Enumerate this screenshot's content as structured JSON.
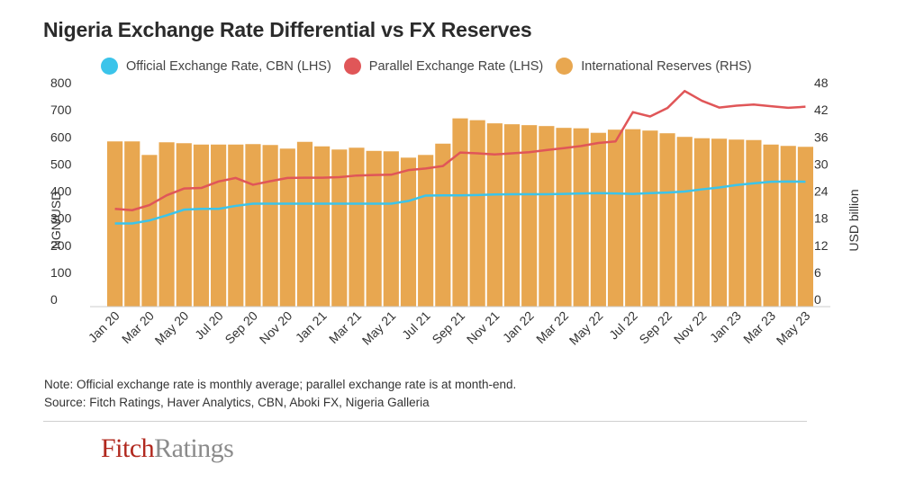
{
  "chart_data": {
    "type": "bar",
    "title": "Nigeria Exchange Rate Differential vs FX Reserves",
    "ylabel_left": "NGN/USD",
    "ylabel_right": "USD billion",
    "ylim_left": [
      0,
      800
    ],
    "ylim_right": [
      0,
      48
    ],
    "yticks_left": [
      "0",
      "100",
      "200",
      "300",
      "400",
      "500",
      "600",
      "700",
      "800"
    ],
    "yticks_right": [
      "0",
      "6",
      "12",
      "18",
      "24",
      "30",
      "36",
      "42",
      "48"
    ],
    "categories": [
      "Jan 20",
      "Feb 20",
      "Mar 20",
      "Apr 20",
      "May 20",
      "Jun 20",
      "Jul 20",
      "Aug 20",
      "Sep 20",
      "Oct 20",
      "Nov 20",
      "Dec 20",
      "Jan 21",
      "Feb 21",
      "Mar 21",
      "Apr 21",
      "May 21",
      "Jun 21",
      "Jul 21",
      "Aug 21",
      "Sep 21",
      "Oct 21",
      "Nov 21",
      "Dec 21",
      "Jan 22",
      "Feb 22",
      "Mar 22",
      "Apr 22",
      "May 22",
      "Jun 22",
      "Jul 22",
      "Aug 22",
      "Sep 22",
      "Oct 22",
      "Nov 22",
      "Dec 22",
      "Jan 23",
      "Feb 23",
      "Mar 23",
      "Apr 23",
      "May 23"
    ],
    "tick_labels": [
      "Jan 20",
      "Mar 20",
      "May 20",
      "Jul 20",
      "Sep 20",
      "Nov 20",
      "Jan 21",
      "Mar 21",
      "May 21",
      "Jul 21",
      "Sep 21",
      "Nov 21",
      "Jan 22",
      "Mar 22",
      "May 22",
      "Jul 22",
      "Sep 22",
      "Nov 22",
      "Jan 23",
      "Mar 23",
      "May 23"
    ],
    "series": [
      {
        "name": "Official Exchange Rate, CBN (LHS)",
        "type": "line",
        "axis": "left",
        "color": "#3bc4ea",
        "values": [
          307,
          307,
          318,
          337,
          358,
          361,
          361,
          372,
          380,
          380,
          380,
          380,
          380,
          380,
          380,
          380,
          380,
          390,
          410,
          411,
          411,
          412,
          414,
          415,
          415,
          415,
          416,
          418,
          419,
          418,
          416,
          419,
          421,
          425,
          433,
          440,
          449,
          455,
          461,
          462,
          461
        ]
      },
      {
        "name": "Parallel Exchange Rate (LHS)",
        "type": "line",
        "axis": "left",
        "color": "#e05658",
        "values": [
          361,
          356,
          375,
          411,
          436,
          438,
          462,
          475,
          450,
          463,
          475,
          476,
          476,
          478,
          484,
          486,
          487,
          504,
          510,
          519,
          569,
          566,
          562,
          566,
          570,
          578,
          585,
          593,
          604,
          610,
          718,
          702,
          733,
          796,
          760,
          735,
          742,
          746,
          740,
          734,
          738
        ]
      },
      {
        "name": "International Reserves (RHS)",
        "type": "bar",
        "axis": "right",
        "color": "#e8a750",
        "values": [
          36.6,
          36.6,
          33.6,
          36.4,
          36.2,
          35.9,
          35.9,
          35.9,
          36.0,
          35.8,
          35.0,
          36.5,
          35.5,
          34.8,
          35.2,
          34.5,
          34.4,
          33.0,
          33.6,
          36.1,
          41.7,
          41.3,
          40.6,
          40.4,
          40.2,
          40.0,
          39.6,
          39.5,
          38.5,
          39.2,
          39.3,
          39.0,
          38.4,
          37.6,
          37.3,
          37.2,
          37.0,
          36.9,
          35.9,
          35.6,
          35.4
        ]
      }
    ]
  },
  "legend": [
    {
      "label": "Official Exchange Rate, CBN (LHS)",
      "color": "#3bc4ea"
    },
    {
      "label": "Parallel Exchange Rate (LHS)",
      "color": "#e05658"
    },
    {
      "label": "International Reserves (RHS)",
      "color": "#e8a750"
    }
  ],
  "note": {
    "line1": "Note: Official exchange rate  is monthly average; parallel exchange rate is at month-end.",
    "line2": "Source: Fitch Ratings, Haver Analytics, CBN, Aboki FX,  Nigeria Galleria"
  },
  "logo": {
    "part1": "Fitch",
    "part2": "Ratings"
  }
}
